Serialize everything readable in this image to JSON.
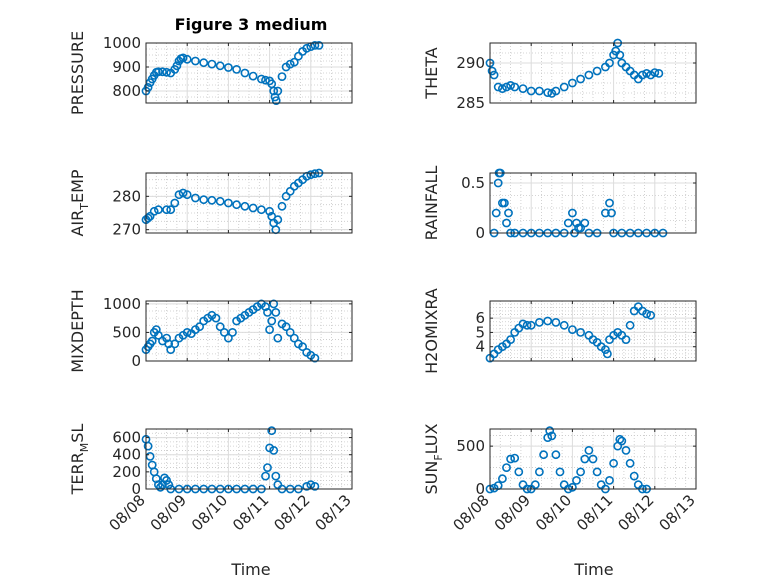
{
  "figure": {
    "title": "Figure 3 medium",
    "xlabel": "Time"
  },
  "chart_data": [
    {
      "type": "scatter",
      "ylabel": "PRESSURE",
      "ylim": [
        750,
        1000
      ],
      "yticks": [
        800,
        900,
        1000
      ],
      "xlim": [
        "08/08",
        "08/13"
      ],
      "grid": "on",
      "marker": "circle",
      "color": "#0072BD",
      "points": [
        [
          0.0,
          800
        ],
        [
          0.05,
          815
        ],
        [
          0.1,
          835
        ],
        [
          0.15,
          850
        ],
        [
          0.2,
          865
        ],
        [
          0.25,
          878
        ],
        [
          0.3,
          880
        ],
        [
          0.4,
          880
        ],
        [
          0.5,
          878
        ],
        [
          0.6,
          875
        ],
        [
          0.7,
          890
        ],
        [
          0.75,
          905
        ],
        [
          0.8,
          925
        ],
        [
          0.85,
          935
        ],
        [
          0.9,
          938
        ],
        [
          1.0,
          932
        ],
        [
          1.2,
          925
        ],
        [
          1.4,
          918
        ],
        [
          1.6,
          912
        ],
        [
          1.8,
          905
        ],
        [
          2.0,
          898
        ],
        [
          2.2,
          890
        ],
        [
          2.4,
          875
        ],
        [
          2.6,
          862
        ],
        [
          2.8,
          850
        ],
        [
          2.9,
          845
        ],
        [
          3.0,
          842
        ],
        [
          3.05,
          830
        ],
        [
          3.1,
          800
        ],
        [
          3.13,
          775
        ],
        [
          3.16,
          760
        ],
        [
          3.2,
          800
        ],
        [
          3.3,
          860
        ],
        [
          3.4,
          900
        ],
        [
          3.5,
          912
        ],
        [
          3.6,
          920
        ],
        [
          3.7,
          945
        ],
        [
          3.8,
          965
        ],
        [
          3.9,
          978
        ],
        [
          4.0,
          985
        ],
        [
          4.1,
          990
        ],
        [
          4.2,
          990
        ]
      ]
    },
    {
      "type": "scatter",
      "ylabel": "THETA",
      "ylim": [
        285,
        292.5
      ],
      "yticks": [
        285,
        290
      ],
      "xlim": [
        "08/08",
        "08/13"
      ],
      "grid": "on",
      "marker": "circle",
      "color": "#0072BD",
      "points": [
        [
          0.0,
          290
        ],
        [
          0.05,
          289
        ],
        [
          0.1,
          288.5
        ],
        [
          0.2,
          287
        ],
        [
          0.3,
          286.8
        ],
        [
          0.4,
          287
        ],
        [
          0.5,
          287.2
        ],
        [
          0.6,
          287
        ],
        [
          0.8,
          286.8
        ],
        [
          1.0,
          286.5
        ],
        [
          1.2,
          286.5
        ],
        [
          1.4,
          286.3
        ],
        [
          1.5,
          286.2
        ],
        [
          1.6,
          286.5
        ],
        [
          1.8,
          287
        ],
        [
          2.0,
          287.5
        ],
        [
          2.2,
          288
        ],
        [
          2.4,
          288.5
        ],
        [
          2.6,
          289
        ],
        [
          2.8,
          289.5
        ],
        [
          2.9,
          290
        ],
        [
          3.0,
          291
        ],
        [
          3.05,
          291.5
        ],
        [
          3.1,
          292.5
        ],
        [
          3.15,
          291
        ],
        [
          3.2,
          290
        ],
        [
          3.3,
          289.5
        ],
        [
          3.4,
          289
        ],
        [
          3.5,
          288.5
        ],
        [
          3.6,
          288
        ],
        [
          3.7,
          288.5
        ],
        [
          3.8,
          288.7
        ],
        [
          3.9,
          288.5
        ],
        [
          4.0,
          288.8
        ],
        [
          4.1,
          288.7
        ]
      ]
    },
    {
      "type": "scatter",
      "ylabel": "AIR_TEMP",
      "ylim": [
        269,
        287
      ],
      "yticks": [
        270,
        280
      ],
      "xlim": [
        "08/08",
        "08/13"
      ],
      "grid": "on",
      "marker": "circle",
      "color": "#0072BD",
      "points": [
        [
          0.0,
          273
        ],
        [
          0.05,
          273.5
        ],
        [
          0.1,
          274
        ],
        [
          0.2,
          275.5
        ],
        [
          0.3,
          276
        ],
        [
          0.5,
          276
        ],
        [
          0.6,
          276
        ],
        [
          0.7,
          278
        ],
        [
          0.8,
          280.5
        ],
        [
          0.9,
          281
        ],
        [
          1.0,
          280.5
        ],
        [
          1.2,
          279.5
        ],
        [
          1.4,
          279
        ],
        [
          1.6,
          278.8
        ],
        [
          1.8,
          278.5
        ],
        [
          2.0,
          278
        ],
        [
          2.2,
          277.5
        ],
        [
          2.4,
          277
        ],
        [
          2.6,
          276.5
        ],
        [
          2.8,
          276
        ],
        [
          3.0,
          275.5
        ],
        [
          3.05,
          274
        ],
        [
          3.1,
          272
        ],
        [
          3.15,
          270
        ],
        [
          3.2,
          273
        ],
        [
          3.3,
          277
        ],
        [
          3.4,
          280
        ],
        [
          3.5,
          281.5
        ],
        [
          3.6,
          283
        ],
        [
          3.7,
          284
        ],
        [
          3.8,
          285
        ],
        [
          3.9,
          286
        ],
        [
          4.0,
          286.5
        ],
        [
          4.1,
          286.8
        ],
        [
          4.2,
          287
        ]
      ]
    },
    {
      "type": "scatter",
      "ylabel": "RAINFALL",
      "ylim": [
        0,
        0.6
      ],
      "yticks": [
        0,
        0.5
      ],
      "xlim": [
        "08/08",
        "08/13"
      ],
      "grid": "on",
      "marker": "circle",
      "color": "#0072BD",
      "points": [
        [
          0.1,
          0
        ],
        [
          0.15,
          0.2
        ],
        [
          0.2,
          0.5
        ],
        [
          0.22,
          0.6
        ],
        [
          0.25,
          0.6
        ],
        [
          0.3,
          0.3
        ],
        [
          0.35,
          0.3
        ],
        [
          0.4,
          0.1
        ],
        [
          0.45,
          0.2
        ],
        [
          0.5,
          0
        ],
        [
          0.6,
          0
        ],
        [
          0.8,
          0
        ],
        [
          1.0,
          0
        ],
        [
          1.2,
          0
        ],
        [
          1.4,
          0
        ],
        [
          1.6,
          0
        ],
        [
          1.8,
          0
        ],
        [
          1.9,
          0.1
        ],
        [
          2.0,
          0.2
        ],
        [
          2.05,
          0
        ],
        [
          2.1,
          0.1
        ],
        [
          2.15,
          0.05
        ],
        [
          2.2,
          0.05
        ],
        [
          2.3,
          0.1
        ],
        [
          2.4,
          0
        ],
        [
          2.6,
          0
        ],
        [
          2.8,
          0.2
        ],
        [
          2.9,
          0.3
        ],
        [
          2.95,
          0.2
        ],
        [
          3.0,
          0
        ],
        [
          3.2,
          0
        ],
        [
          3.4,
          0
        ],
        [
          3.6,
          0
        ],
        [
          3.8,
          0
        ],
        [
          4.0,
          0
        ],
        [
          4.2,
          0
        ]
      ]
    },
    {
      "type": "scatter",
      "ylabel": "MIXDEPTH",
      "ylim": [
        0,
        1050
      ],
      "yticks": [
        0,
        500,
        1000
      ],
      "xlim": [
        "08/08",
        "08/13"
      ],
      "grid": "on",
      "marker": "circle",
      "color": "#0072BD",
      "points": [
        [
          0.0,
          200
        ],
        [
          0.05,
          250
        ],
        [
          0.1,
          300
        ],
        [
          0.15,
          350
        ],
        [
          0.2,
          500
        ],
        [
          0.25,
          550
        ],
        [
          0.3,
          450
        ],
        [
          0.4,
          350
        ],
        [
          0.5,
          400
        ],
        [
          0.55,
          300
        ],
        [
          0.6,
          200
        ],
        [
          0.7,
          300
        ],
        [
          0.8,
          400
        ],
        [
          0.9,
          450
        ],
        [
          1.0,
          500
        ],
        [
          1.1,
          480
        ],
        [
          1.2,
          550
        ],
        [
          1.3,
          600
        ],
        [
          1.4,
          700
        ],
        [
          1.5,
          750
        ],
        [
          1.6,
          800
        ],
        [
          1.7,
          750
        ],
        [
          1.8,
          600
        ],
        [
          1.9,
          500
        ],
        [
          2.0,
          400
        ],
        [
          2.1,
          500
        ],
        [
          2.2,
          700
        ],
        [
          2.3,
          750
        ],
        [
          2.4,
          800
        ],
        [
          2.5,
          850
        ],
        [
          2.6,
          900
        ],
        [
          2.7,
          950
        ],
        [
          2.8,
          1000
        ],
        [
          2.9,
          950
        ],
        [
          2.95,
          850
        ],
        [
          3.0,
          550
        ],
        [
          3.05,
          700
        ],
        [
          3.1,
          1000
        ],
        [
          3.15,
          850
        ],
        [
          3.2,
          400
        ],
        [
          3.3,
          650
        ],
        [
          3.4,
          600
        ],
        [
          3.5,
          500
        ],
        [
          3.6,
          400
        ],
        [
          3.7,
          300
        ],
        [
          3.8,
          250
        ],
        [
          3.9,
          150
        ],
        [
          4.0,
          100
        ],
        [
          4.1,
          50
        ]
      ]
    },
    {
      "type": "scatter",
      "ylabel": "H2OMIXRA",
      "ylim": [
        3,
        7.2
      ],
      "yticks": [
        4,
        5,
        6
      ],
      "xlim": [
        "08/08",
        "08/13"
      ],
      "grid": "on",
      "marker": "circle",
      "color": "#0072BD",
      "points": [
        [
          0.0,
          3.2
        ],
        [
          0.1,
          3.5
        ],
        [
          0.2,
          3.8
        ],
        [
          0.3,
          4
        ],
        [
          0.4,
          4.2
        ],
        [
          0.5,
          4.5
        ],
        [
          0.6,
          5
        ],
        [
          0.7,
          5.3
        ],
        [
          0.8,
          5.6
        ],
        [
          0.9,
          5.5
        ],
        [
          1.0,
          5.5
        ],
        [
          1.2,
          5.7
        ],
        [
          1.4,
          5.8
        ],
        [
          1.6,
          5.7
        ],
        [
          1.8,
          5.5
        ],
        [
          2.0,
          5.2
        ],
        [
          2.2,
          5
        ],
        [
          2.4,
          4.8
        ],
        [
          2.5,
          4.5
        ],
        [
          2.6,
          4.3
        ],
        [
          2.7,
          4
        ],
        [
          2.8,
          3.8
        ],
        [
          2.85,
          3.5
        ],
        [
          2.9,
          4.5
        ],
        [
          3.0,
          4.8
        ],
        [
          3.1,
          5
        ],
        [
          3.2,
          4.8
        ],
        [
          3.3,
          4.5
        ],
        [
          3.4,
          5.5
        ],
        [
          3.5,
          6.5
        ],
        [
          3.6,
          6.8
        ],
        [
          3.7,
          6.5
        ],
        [
          3.8,
          6.3
        ],
        [
          3.9,
          6.2
        ]
      ]
    },
    {
      "type": "scatter",
      "ylabel": "TERR_MSL",
      "ylim": [
        0,
        700
      ],
      "yticks": [
        0,
        200,
        400,
        600
      ],
      "xlim": [
        "08/08",
        "08/13"
      ],
      "grid": "on",
      "marker": "circle",
      "color": "#0072BD",
      "points": [
        [
          0.0,
          580
        ],
        [
          0.05,
          500
        ],
        [
          0.1,
          380
        ],
        [
          0.15,
          280
        ],
        [
          0.2,
          200
        ],
        [
          0.25,
          120
        ],
        [
          0.3,
          50
        ],
        [
          0.35,
          20
        ],
        [
          0.4,
          50
        ],
        [
          0.45,
          130
        ],
        [
          0.5,
          100
        ],
        [
          0.55,
          50
        ],
        [
          0.6,
          0
        ],
        [
          0.8,
          0
        ],
        [
          1.0,
          0
        ],
        [
          1.2,
          0
        ],
        [
          1.4,
          0
        ],
        [
          1.6,
          0
        ],
        [
          1.8,
          0
        ],
        [
          2.0,
          0
        ],
        [
          2.2,
          0
        ],
        [
          2.4,
          0
        ],
        [
          2.6,
          0
        ],
        [
          2.8,
          0
        ],
        [
          2.9,
          150
        ],
        [
          2.95,
          250
        ],
        [
          3.0,
          480
        ],
        [
          3.05,
          680
        ],
        [
          3.1,
          450
        ],
        [
          3.15,
          150
        ],
        [
          3.2,
          50
        ],
        [
          3.3,
          0
        ],
        [
          3.5,
          0
        ],
        [
          3.7,
          0
        ],
        [
          3.9,
          30
        ],
        [
          4.0,
          50
        ],
        [
          4.1,
          30
        ]
      ]
    },
    {
      "type": "scatter",
      "ylabel": "SUN_FLUX",
      "ylim": [
        0,
        700
      ],
      "yticks": [
        0,
        500
      ],
      "xlim": [
        "08/08",
        "08/13"
      ],
      "grid": "on",
      "marker": "circle",
      "color": "#0072BD",
      "points": [
        [
          0.0,
          0
        ],
        [
          0.1,
          10
        ],
        [
          0.2,
          40
        ],
        [
          0.3,
          120
        ],
        [
          0.4,
          250
        ],
        [
          0.5,
          350
        ],
        [
          0.6,
          360
        ],
        [
          0.7,
          200
        ],
        [
          0.8,
          50
        ],
        [
          0.9,
          0
        ],
        [
          1.0,
          0
        ],
        [
          1.1,
          50
        ],
        [
          1.2,
          200
        ],
        [
          1.3,
          400
        ],
        [
          1.4,
          600
        ],
        [
          1.45,
          680
        ],
        [
          1.5,
          620
        ],
        [
          1.6,
          400
        ],
        [
          1.7,
          200
        ],
        [
          1.8,
          50
        ],
        [
          1.9,
          0
        ],
        [
          2.0,
          20
        ],
        [
          2.1,
          100
        ],
        [
          2.2,
          200
        ],
        [
          2.3,
          350
        ],
        [
          2.4,
          450
        ],
        [
          2.5,
          350
        ],
        [
          2.6,
          200
        ],
        [
          2.7,
          50
        ],
        [
          2.8,
          0
        ],
        [
          2.9,
          100
        ],
        [
          3.0,
          300
        ],
        [
          3.1,
          500
        ],
        [
          3.15,
          580
        ],
        [
          3.2,
          560
        ],
        [
          3.3,
          450
        ],
        [
          3.4,
          300
        ],
        [
          3.5,
          150
        ],
        [
          3.6,
          50
        ],
        [
          3.7,
          0
        ],
        [
          3.8,
          0
        ]
      ]
    }
  ],
  "x_tick_labels": [
    "08/08",
    "08/09",
    "08/10",
    "08/11",
    "08/12",
    "08/13"
  ],
  "axis_labels": [
    {
      "main": "PRESSURE",
      "sub": ""
    },
    {
      "main": "THETA",
      "sub": ""
    },
    {
      "pre": "AIR",
      "sub": "T",
      "post": "EMP"
    },
    {
      "main": "RAINFALL",
      "sub": ""
    },
    {
      "main": "MIXDEPTH",
      "sub": ""
    },
    {
      "main": "H2OMIXRA",
      "sub": ""
    },
    {
      "pre": "TERR",
      "sub": "M",
      "post": "SL"
    },
    {
      "pre": "SUN",
      "sub": "F",
      "post": "LUX"
    }
  ]
}
